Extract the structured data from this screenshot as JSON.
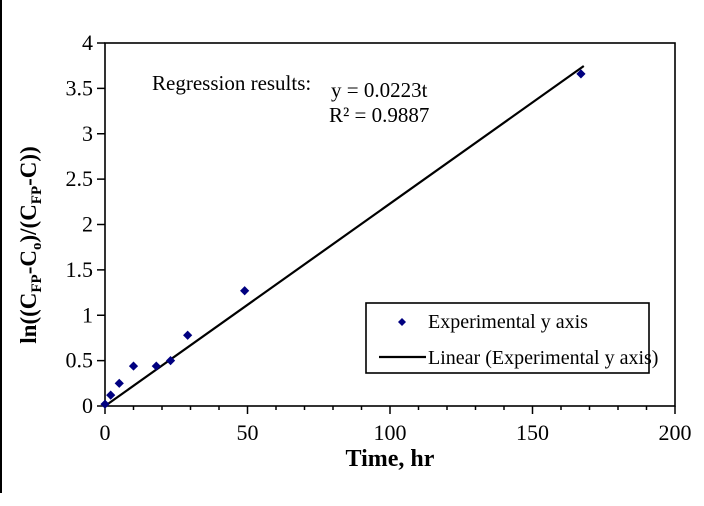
{
  "page": {
    "background": "#ffffff",
    "border_color": "#000000"
  },
  "chart_data": {
    "type": "scatter",
    "title": "",
    "xlabel": "Time, hr",
    "ylabel": "ln((CFP-Co)/(CFP-C))",
    "ylabel_segments": [
      {
        "t": "ln((C"
      },
      {
        "t": "FP",
        "sub": true
      },
      {
        "t": "-C"
      },
      {
        "t": "o",
        "sub": true
      },
      {
        "t": ")/(C"
      },
      {
        "t": "FP",
        "sub": true
      },
      {
        "t": "-C))"
      }
    ],
    "xlim": [
      0,
      200
    ],
    "ylim": [
      0,
      4
    ],
    "x_major_ticks": [
      0,
      50,
      100,
      150,
      200
    ],
    "x_minor_step": 10,
    "y_major_ticks": [
      0,
      0.5,
      1,
      1.5,
      2,
      2.5,
      3,
      3.5,
      4
    ],
    "grid": false,
    "annotation": {
      "intro": "Regression results:",
      "equation": "y = 0.0223t",
      "r_squared": "R² = 0.9887"
    },
    "series": [
      {
        "name": "Experimental y axis",
        "type": "scatter",
        "marker": "diamond",
        "color": "#000080",
        "points": [
          [
            0,
            0.02
          ],
          [
            2,
            0.12
          ],
          [
            5,
            0.25
          ],
          [
            10,
            0.44
          ],
          [
            18,
            0.44
          ],
          [
            23,
            0.5
          ],
          [
            29,
            0.78
          ],
          [
            49,
            1.27
          ],
          [
            167,
            3.66
          ]
        ]
      },
      {
        "name": "Linear (Experimental y axis)",
        "type": "line",
        "color": "#000000",
        "slope": 0.0223,
        "intercept": 0,
        "x_start": 0,
        "x_end": 168
      }
    ],
    "legend": {
      "position": "inside-bottom-right",
      "border": "#000000",
      "entries": [
        "Experimental y axis",
        "Linear (Experimental y axis)"
      ]
    }
  }
}
